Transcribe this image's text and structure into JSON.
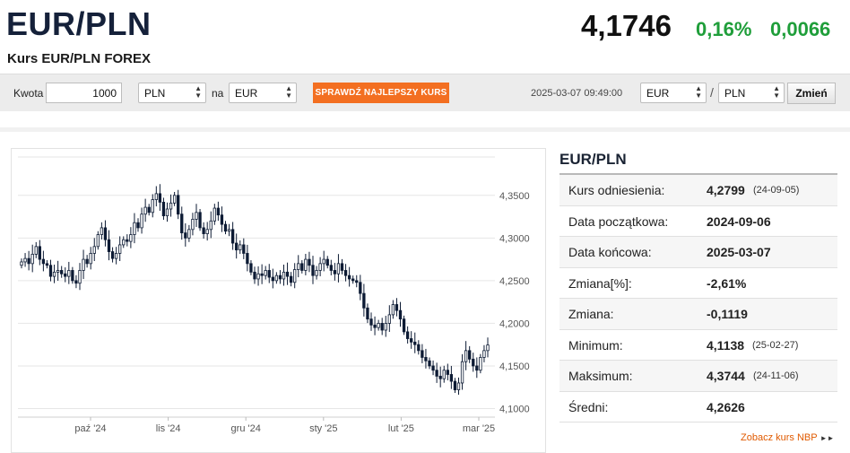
{
  "header": {
    "pair": "EUR/PLN",
    "subtitle": "Kurs EUR/PLN FOREX",
    "price": "4,1746",
    "change_pct": "0,16%",
    "change_abs": "0,0066",
    "colors": {
      "positive": "#1f9e3a",
      "title": "#15213a"
    }
  },
  "toolbar": {
    "amount_label": "Kwota",
    "amount_value": "1000",
    "from_currency": "PLN",
    "to_label": "na",
    "to_currency": "EUR",
    "best_rate_button": "SPRAWDŹ NAJLEPSZY KURS",
    "timestamp": "2025-03-07 09:49:00",
    "base_select": "EUR",
    "slash": "/",
    "quote_select": "PLN",
    "change_button": "Zmień",
    "accent": "#f36f21"
  },
  "panel": {
    "title": "EUR/PLN",
    "rows": [
      {
        "label": "Kurs odniesienia:",
        "value": "4,2799",
        "extra": "(24-09-05)"
      },
      {
        "label": "Data początkowa:",
        "value": "2024-09-06",
        "extra": ""
      },
      {
        "label": "Data końcowa:",
        "value": "2025-03-07",
        "extra": ""
      },
      {
        "label": "Zmiana[%]:",
        "value": "-2,61%",
        "extra": ""
      },
      {
        "label": "Zmiana:",
        "value": "-0,1119",
        "extra": ""
      },
      {
        "label": "Minimum:",
        "value": "4,1138",
        "extra": "(25-02-27)"
      },
      {
        "label": "Maksimum:",
        "value": "4,3744",
        "extra": "(24-11-06)"
      },
      {
        "label": "Średni:",
        "value": "4,2626",
        "extra": ""
      }
    ],
    "nbp_link": "Zobacz kurs NBP"
  },
  "chart_data": {
    "type": "candlestick",
    "x_tick_labels": [
      "paź '24",
      "lis '24",
      "gru '24",
      "sty '25",
      "lut '25",
      "mar '25"
    ],
    "y_tick_labels": [
      "4,1000",
      "4,1500",
      "4,2000",
      "4,2500",
      "4,3000",
      "4,3500"
    ],
    "y_ticks": [
      4.1,
      4.15,
      4.2,
      4.25,
      4.3,
      4.35
    ],
    "ylim": [
      4.09,
      4.395
    ],
    "axis_side": "right",
    "grid": true,
    "colors": {
      "up": "#ffffff",
      "down": "#0d1b34",
      "grid": "#e6e6e6"
    },
    "closes": [
      4.272,
      4.276,
      4.27,
      4.281,
      4.29,
      4.275,
      4.27,
      4.268,
      4.255,
      4.26,
      4.262,
      4.258,
      4.255,
      4.262,
      4.25,
      4.247,
      4.262,
      4.275,
      4.27,
      4.282,
      4.29,
      4.304,
      4.312,
      4.298,
      4.284,
      4.276,
      4.282,
      4.292,
      4.298,
      4.296,
      4.304,
      4.318,
      4.312,
      4.328,
      4.336,
      4.33,
      4.345,
      4.352,
      4.342,
      4.326,
      4.334,
      4.341,
      4.35,
      4.328,
      4.306,
      4.3,
      4.31,
      4.322,
      4.33,
      4.312,
      4.305,
      4.31,
      4.32,
      4.335,
      4.327,
      4.316,
      4.308,
      4.31,
      4.294,
      4.286,
      4.292,
      4.282,
      4.27,
      4.26,
      4.252,
      4.258,
      4.256,
      4.262,
      4.254,
      4.25,
      4.256,
      4.252,
      4.26,
      4.255,
      4.248,
      4.263,
      4.27,
      4.262,
      4.275,
      4.268,
      4.256,
      4.262,
      4.27,
      4.275,
      4.268,
      4.262,
      4.258,
      4.27,
      4.262,
      4.256,
      4.252,
      4.25,
      4.248,
      4.235,
      4.218,
      4.205,
      4.198,
      4.195,
      4.2,
      4.192,
      4.2,
      4.21,
      4.222,
      4.215,
      4.205,
      4.19,
      4.182,
      4.178,
      4.175,
      4.168,
      4.16,
      4.156,
      4.15,
      4.145,
      4.138,
      4.135,
      4.145,
      4.14,
      4.132,
      4.122,
      4.13,
      4.155,
      4.168,
      4.158,
      4.15,
      4.145,
      4.16,
      4.168,
      4.1746
    ]
  }
}
